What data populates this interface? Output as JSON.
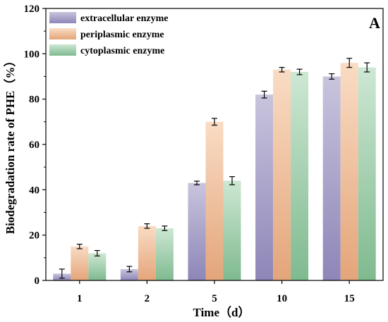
{
  "chart_data": {
    "type": "bar",
    "panel_label": "A",
    "title": "",
    "xlabel": "Time（d）",
    "ylabel": "Biodegradation rate of PHE（%）",
    "categories": [
      "1",
      "2",
      "5",
      "10",
      "15"
    ],
    "ylim": [
      0,
      120
    ],
    "yticks": [
      "0",
      "20",
      "40",
      "60",
      "80",
      "100",
      "120"
    ],
    "grid": false,
    "legend_position": "top-left",
    "series": [
      {
        "name": "extracellular enzyme",
        "values": [
          3,
          5,
          43,
          82,
          90
        ],
        "errors": [
          2,
          1.2,
          0.8,
          1.5,
          1.2
        ],
        "color_top": "#c9c4dd",
        "color_bottom": "#8d86b8"
      },
      {
        "name": "periplasmic enzyme",
        "values": [
          15,
          24,
          70,
          93,
          96
        ],
        "errors": [
          1,
          1,
          1.5,
          1,
          2
        ],
        "color_top": "#f9dcc4",
        "color_bottom": "#e4a57a"
      },
      {
        "name": "cytoplasmic enzyme",
        "values": [
          12,
          23,
          44,
          92,
          94
        ],
        "errors": [
          1.2,
          1,
          1.8,
          1.2,
          2
        ],
        "color_top": "#cde7d3",
        "color_bottom": "#7fba8f"
      }
    ]
  }
}
